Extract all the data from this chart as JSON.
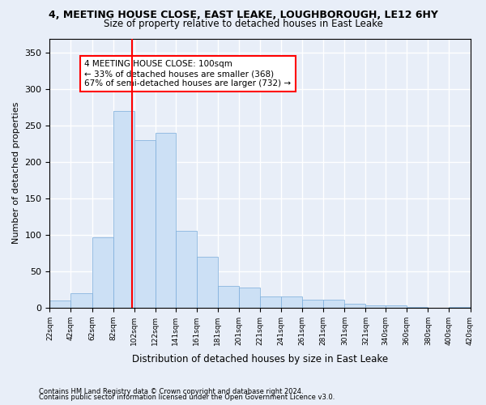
{
  "title1": "4, MEETING HOUSE CLOSE, EAST LEAKE, LOUGHBOROUGH, LE12 6HY",
  "title2": "Size of property relative to detached houses in East Leake",
  "xlabel": "Distribution of detached houses by size in East Leake",
  "ylabel": "Number of detached properties",
  "footnote1": "Contains HM Land Registry data © Crown copyright and database right 2024.",
  "footnote2": "Contains public sector information licensed under the Open Government Licence v3.0.",
  "annotation_line1": "4 MEETING HOUSE CLOSE: 100sqm",
  "annotation_line2": "← 33% of detached houses are smaller (368)",
  "annotation_line3": "67% of semi-detached houses are larger (732) →",
  "property_size": 100,
  "bar_color": "#cce0f5",
  "bar_edge_color": "#7aacda",
  "vline_color": "red",
  "background_color": "#e8eef8",
  "grid_color": "#ffffff",
  "bins": [
    22,
    42,
    62,
    82,
    102,
    122,
    141,
    161,
    181,
    201,
    221,
    241,
    261,
    281,
    301,
    321,
    340,
    360,
    380,
    400,
    420
  ],
  "counts": [
    10,
    20,
    97,
    270,
    230,
    240,
    105,
    70,
    30,
    28,
    15,
    15,
    11,
    11,
    5,
    3,
    3,
    1,
    0,
    1
  ],
  "ylim": [
    0,
    370
  ],
  "yticks": [
    0,
    50,
    100,
    150,
    200,
    250,
    300,
    350
  ],
  "annotation_box_color": "white",
  "annotation_box_edge": "red"
}
